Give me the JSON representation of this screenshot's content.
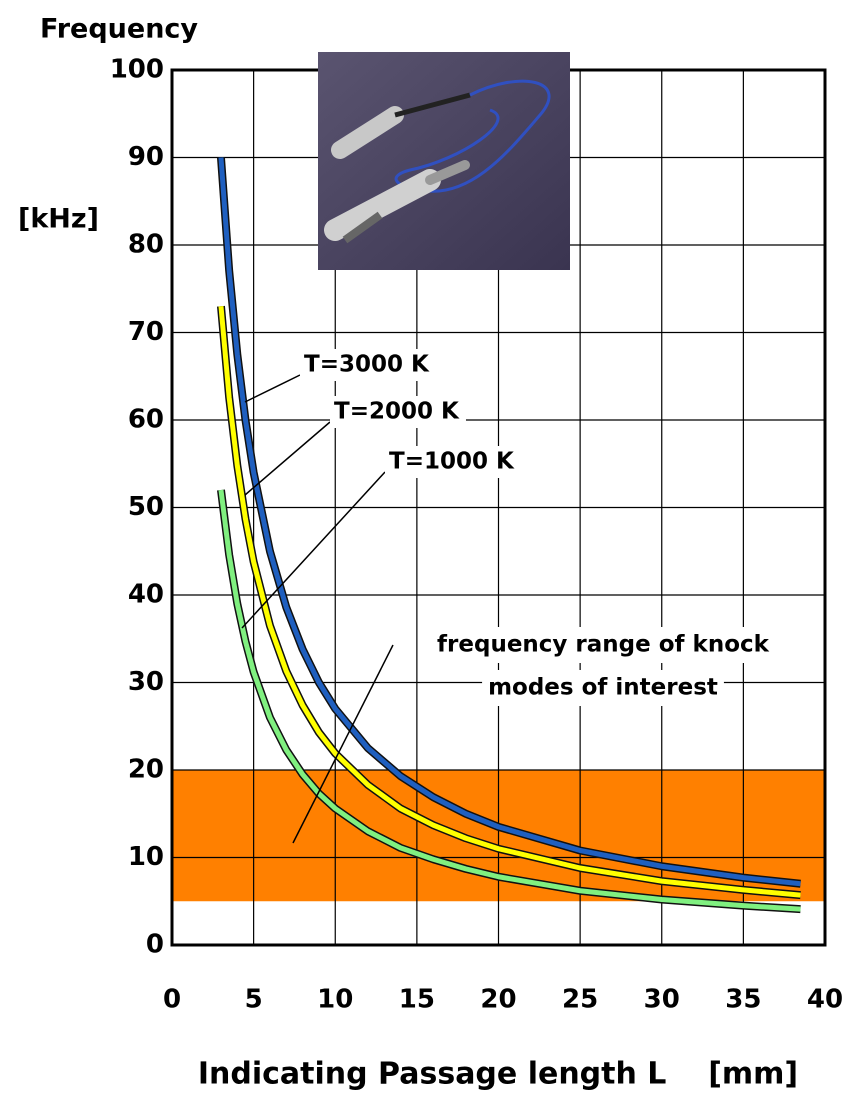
{
  "chart_data": {
    "type": "line",
    "y_label": "Frequency",
    "y_unit": "[kHz]",
    "x_label": "Indicating Passage length L    [mm]",
    "xlim": [
      0,
      40
    ],
    "xticks": [
      0,
      5,
      10,
      15,
      20,
      25,
      30,
      35,
      40
    ],
    "ylim": [
      0,
      100
    ],
    "yticks": [
      0,
      10,
      20,
      30,
      40,
      50,
      60,
      70,
      80,
      90,
      100
    ],
    "grid": true,
    "band": {
      "ymin": 5,
      "ymax": 20,
      "color": "#ff8000"
    },
    "x": [
      3,
      3.5,
      4,
      4.5,
      5,
      6,
      7,
      8,
      9,
      10,
      12,
      14,
      16,
      18,
      20,
      25,
      30,
      35,
      38.5
    ],
    "series": [
      {
        "name": "T=3000 K",
        "color": "#1f5fbf",
        "values": [
          90,
          77.1,
          67.5,
          60,
          54,
          45,
          38.6,
          33.8,
          30,
          27,
          22.5,
          19.3,
          16.9,
          15,
          13.5,
          10.8,
          9,
          7.7,
          7.0
        ]
      },
      {
        "name": "T=2000 K",
        "color": "#ffff00",
        "values": [
          73,
          62.6,
          54.8,
          48.7,
          43.8,
          36.5,
          31.3,
          27.4,
          24.3,
          21.9,
          18.3,
          15.6,
          13.7,
          12.2,
          11,
          8.8,
          7.3,
          6.3,
          5.7
        ]
      },
      {
        "name": "T=1000 K",
        "color": "#80f080",
        "values": [
          52,
          44.6,
          39,
          34.7,
          31.2,
          26,
          22.3,
          19.5,
          17.3,
          15.6,
          13,
          11.1,
          9.8,
          8.7,
          7.8,
          6.2,
          5.2,
          4.5,
          4.1
        ]
      }
    ],
    "annotations": [
      "frequency range of knock",
      "modes of interest"
    ]
  }
}
